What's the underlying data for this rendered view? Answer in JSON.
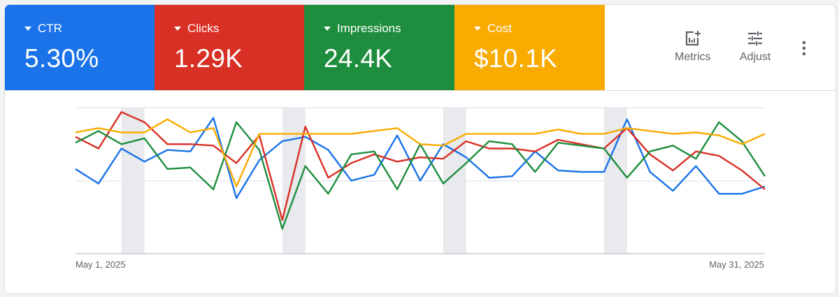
{
  "tiles": [
    {
      "label": "CTR",
      "value": "5.30%",
      "color": "#1a73e8"
    },
    {
      "label": "Clicks",
      "value": "1.29K",
      "color": "#d93025"
    },
    {
      "label": "Impressions",
      "value": "24.4K",
      "color": "#1e8e3e"
    },
    {
      "label": "Cost",
      "value": "$10.1K",
      "color": "#f9ab00"
    }
  ],
  "toolbar": {
    "metrics_label": "Metrics",
    "adjust_label": "Adjust",
    "metrics_icon": "add-chart-icon",
    "adjust_icon": "tune-icon",
    "more_icon": "more-vert-icon"
  },
  "chart_data": {
    "type": "line",
    "x_start_label": "May 1, 2025",
    "x_end_label": "May 31, 2025",
    "days": 31,
    "ylim": [
      0,
      100
    ],
    "y_units": "relative (no axis labels shown)",
    "grid": true,
    "weekend_bands": [
      [
        2,
        3
      ],
      [
        9,
        10
      ],
      [
        16,
        17
      ],
      [
        23,
        24
      ]
    ],
    "series": [
      {
        "name": "CTR",
        "color": "#1a73e8",
        "values": [
          58,
          48,
          72,
          63,
          71,
          70,
          93,
          38,
          64,
          77,
          80,
          71,
          50,
          54,
          81,
          50,
          75,
          66,
          52,
          53,
          70,
          57,
          56,
          56,
          92,
          56,
          43,
          60,
          41,
          41,
          46
        ]
      },
      {
        "name": "Clicks",
        "color": "#d93025",
        "values": [
          80,
          72,
          97,
          90,
          75,
          75,
          74,
          62,
          81,
          23,
          87,
          52,
          62,
          68,
          63,
          66,
          65,
          77,
          72,
          72,
          70,
          78,
          75,
          72,
          86,
          68,
          57,
          70,
          67,
          57,
          44
        ]
      },
      {
        "name": "Impressions",
        "color": "#1e8e3e",
        "values": [
          76,
          84,
          75,
          79,
          58,
          59,
          44,
          90,
          71,
          17,
          60,
          41,
          68,
          70,
          44,
          75,
          48,
          62,
          77,
          75,
          56,
          76,
          74,
          72,
          52,
          70,
          74,
          65,
          90,
          77,
          53
        ]
      },
      {
        "name": "Cost",
        "color": "#f9ab00",
        "values": [
          83,
          86,
          83,
          83,
          92,
          83,
          86,
          46,
          82,
          82,
          82,
          82,
          82,
          84,
          86,
          75,
          74,
          82,
          82,
          82,
          82,
          85,
          82,
          82,
          86,
          84,
          82,
          83,
          81,
          75,
          82
        ]
      }
    ]
  }
}
